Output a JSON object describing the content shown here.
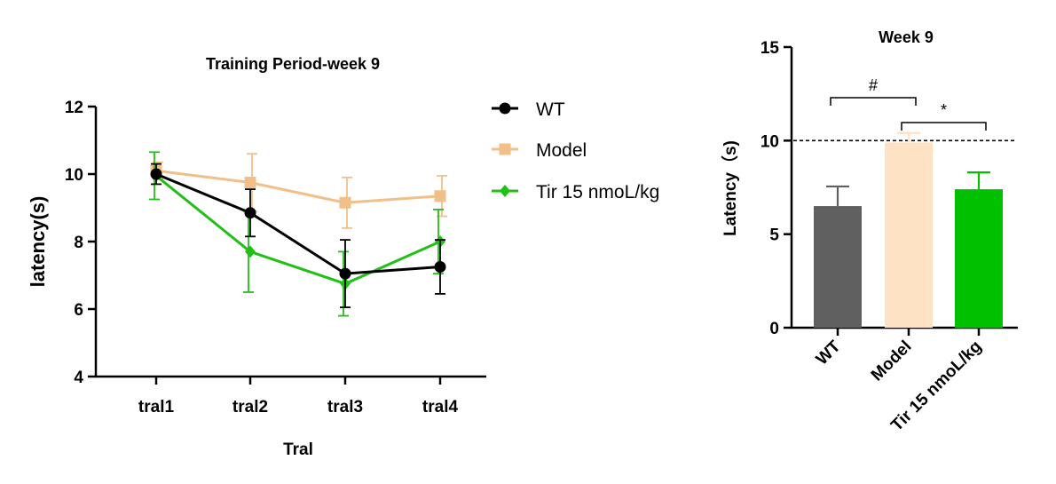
{
  "chart_data": [
    {
      "type": "line",
      "title": "Training Period-week 9",
      "xlabel": "Tral",
      "ylabel": "latency(s)",
      "categories": [
        "tral1",
        "tral2",
        "tral3",
        "tral4"
      ],
      "ylim": [
        4,
        12
      ],
      "yticks": [
        4,
        6,
        8,
        10,
        12
      ],
      "grid": false,
      "legend": "right",
      "series": [
        {
          "name": "WT",
          "color": "#000000",
          "marker": "circle",
          "values": [
            10.0,
            8.85,
            7.05,
            7.25
          ],
          "error": [
            0.3,
            0.7,
            1.0,
            0.8
          ]
        },
        {
          "name": "Model",
          "color": "#f3bf88",
          "marker": "square",
          "values": [
            10.1,
            9.75,
            9.15,
            9.35
          ],
          "error": [
            0.25,
            0.85,
            0.75,
            0.6
          ]
        },
        {
          "name": "Tir 15 nmoL/kg",
          "color": "#22c016",
          "marker": "diamond",
          "values": [
            9.95,
            7.7,
            6.75,
            8.0
          ],
          "error": [
            0.7,
            1.2,
            0.95,
            0.95
          ]
        }
      ]
    },
    {
      "type": "bar",
      "title": "Week 9",
      "ylabel": "Latency（s)",
      "categories": [
        "WT",
        "Model",
        "Tir 15 nmoL/kg"
      ],
      "values": [
        6.5,
        9.9,
        7.4
      ],
      "error": [
        1.05,
        0.5,
        0.9
      ],
      "colors": [
        "#606060",
        "#fde2c4",
        "#00c000"
      ],
      "ylim": [
        0,
        15
      ],
      "yticks": [
        0,
        5,
        10,
        15
      ],
      "reference_line": 10,
      "significance": [
        {
          "from": 0,
          "to": 1,
          "label": "#"
        },
        {
          "from": 1,
          "to": 2,
          "label": "*"
        }
      ]
    }
  ]
}
